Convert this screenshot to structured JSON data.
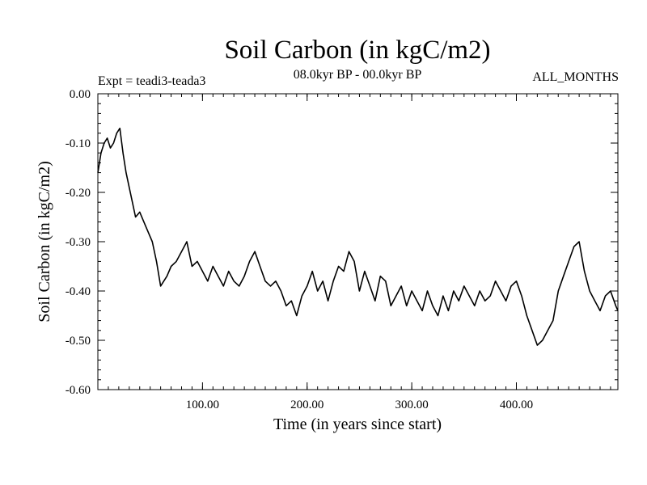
{
  "chart_data": {
    "type": "line",
    "title": "Soil Carbon (in kgC/m2)",
    "subtitle": "08.0kyr BP - 00.0kyr BP",
    "left_label": "Expt = teadi3-teada3",
    "right_label": "ALL_MONTHS",
    "xlabel": "Time (in years since start)",
    "ylabel": "Soil Carbon (in kgC/m2)",
    "xlim": [
      0,
      497
    ],
    "ylim": [
      -0.6,
      0.0
    ],
    "x_ticks": [
      {
        "value": 100,
        "label": "100.00"
      },
      {
        "value": 200,
        "label": "200.00"
      },
      {
        "value": 300,
        "label": "300.00"
      },
      {
        "value": 400,
        "label": "400.00"
      }
    ],
    "y_ticks": [
      {
        "value": 0.0,
        "label": "0.00"
      },
      {
        "value": -0.1,
        "label": "-0.10"
      },
      {
        "value": -0.2,
        "label": "-0.20"
      },
      {
        "value": -0.3,
        "label": "-0.30"
      },
      {
        "value": -0.4,
        "label": "-0.40"
      },
      {
        "value": -0.5,
        "label": "-0.50"
      },
      {
        "value": -0.6,
        "label": "-0.60"
      }
    ],
    "series": [
      {
        "name": "Soil Carbon",
        "color": "#000000",
        "x": [
          0,
          3,
          6,
          9,
          12,
          15,
          18,
          21,
          24,
          27,
          30,
          33,
          36,
          40,
          44,
          48,
          52,
          56,
          60,
          63,
          66,
          70,
          75,
          80,
          85,
          90,
          95,
          100,
          105,
          110,
          115,
          120,
          125,
          130,
          135,
          140,
          145,
          150,
          155,
          160,
          165,
          170,
          175,
          180,
          185,
          190,
          195,
          200,
          205,
          210,
          215,
          220,
          225,
          230,
          235,
          240,
          245,
          250,
          255,
          260,
          265,
          270,
          275,
          280,
          285,
          290,
          295,
          300,
          305,
          310,
          315,
          320,
          325,
          330,
          335,
          340,
          345,
          350,
          355,
          360,
          365,
          370,
          375,
          380,
          385,
          390,
          395,
          400,
          405,
          410,
          415,
          420,
          425,
          430,
          435,
          440,
          445,
          450,
          455,
          460,
          465,
          470,
          475,
          480,
          485,
          490,
          495,
          497
        ],
        "values": [
          -0.16,
          -0.12,
          -0.1,
          -0.09,
          -0.11,
          -0.1,
          -0.08,
          -0.07,
          -0.12,
          -0.16,
          -0.19,
          -0.22,
          -0.25,
          -0.24,
          -0.26,
          -0.28,
          -0.3,
          -0.34,
          -0.39,
          -0.38,
          -0.37,
          -0.35,
          -0.34,
          -0.32,
          -0.3,
          -0.35,
          -0.34,
          -0.36,
          -0.38,
          -0.35,
          -0.37,
          -0.39,
          -0.36,
          -0.38,
          -0.39,
          -0.37,
          -0.34,
          -0.32,
          -0.35,
          -0.38,
          -0.39,
          -0.38,
          -0.4,
          -0.43,
          -0.42,
          -0.45,
          -0.41,
          -0.39,
          -0.36,
          -0.4,
          -0.38,
          -0.42,
          -0.38,
          -0.35,
          -0.36,
          -0.32,
          -0.34,
          -0.4,
          -0.36,
          -0.39,
          -0.42,
          -0.37,
          -0.38,
          -0.43,
          -0.41,
          -0.39,
          -0.43,
          -0.4,
          -0.42,
          -0.44,
          -0.4,
          -0.43,
          -0.45,
          -0.41,
          -0.44,
          -0.4,
          -0.42,
          -0.39,
          -0.41,
          -0.43,
          -0.4,
          -0.42,
          -0.41,
          -0.38,
          -0.4,
          -0.42,
          -0.39,
          -0.38,
          -0.41,
          -0.45,
          -0.48,
          -0.51,
          -0.5,
          -0.48,
          -0.46,
          -0.4,
          -0.37,
          -0.34,
          -0.31,
          -0.3,
          -0.36,
          -0.4,
          -0.42,
          -0.44,
          -0.41,
          -0.4,
          -0.43,
          -0.44
        ]
      }
    ]
  }
}
